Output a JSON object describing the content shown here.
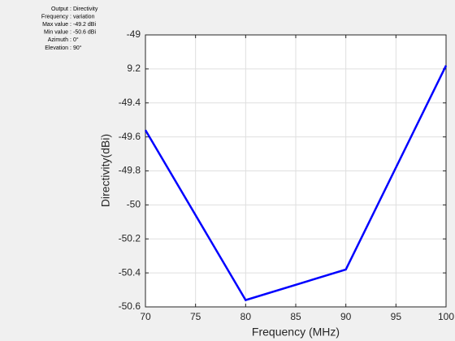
{
  "chart_data": {
    "type": "line",
    "xlabel": "Frequency (MHz)",
    "ylabel": "Directivity(dBi)",
    "annotations": [
      {
        "label": "Output",
        "value": "Directivity"
      },
      {
        "label": "Frequency",
        "value": "variation"
      },
      {
        "label": "Max value",
        "value": "-49.2 dBi"
      },
      {
        "label": "Min value",
        "value": "-50.6 dBi"
      },
      {
        "label": "Azimuth",
        "value": "0°"
      },
      {
        "label": "Elevation",
        "value": "90°"
      }
    ],
    "separator": ":",
    "x": [
      70,
      80,
      90,
      100
    ],
    "series": [
      {
        "color": "#0000ff",
        "values": [
          -49.56,
          -50.56,
          -50.38,
          -49.18
        ]
      }
    ],
    "xlim": [
      70,
      100
    ],
    "xticks": [
      70,
      75,
      80,
      85,
      90,
      95,
      100
    ],
    "ylim": [
      -50.6,
      -49
    ],
    "yticks": [
      -50.6,
      -50.4,
      -50.2,
      -50,
      -49.8,
      -49.6,
      -49.4,
      {
        "value": -49.2,
        "label": "9.2"
      },
      -49
    ],
    "grid": true
  }
}
